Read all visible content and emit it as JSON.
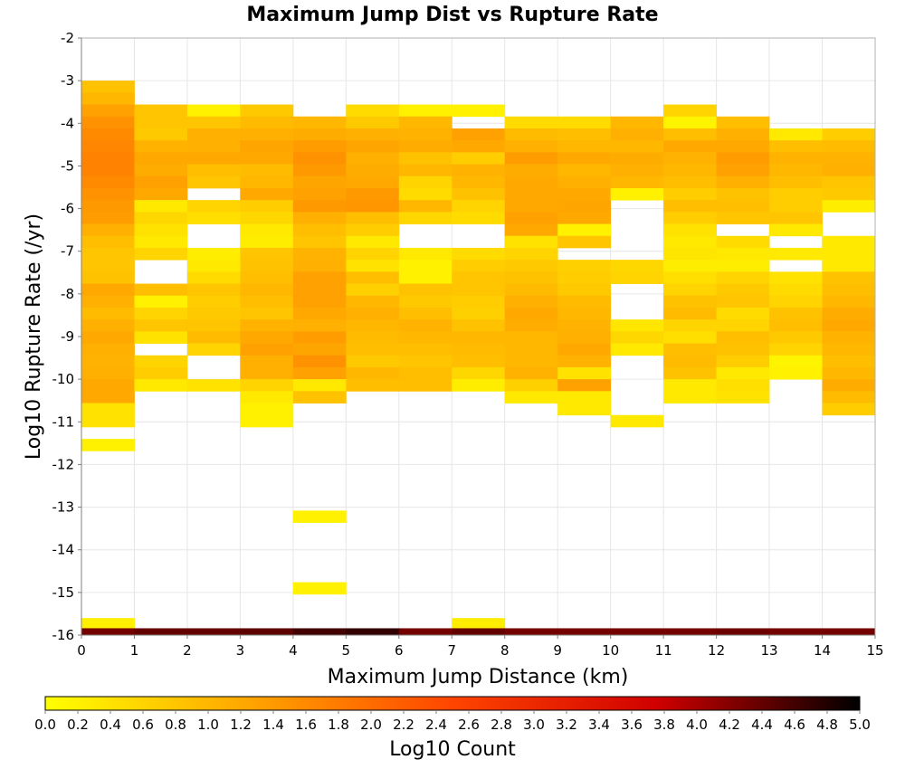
{
  "chart_data": {
    "type": "heatmap",
    "title": "Maximum Jump Dist vs Rupture Rate",
    "xlabel": "Maximum Jump Distance (km)",
    "ylabel": "Log10 Rupture Rate (/yr)",
    "xlim": [
      0,
      15
    ],
    "ylim": [
      -16,
      -2
    ],
    "x_ticks": [
      "0",
      "1",
      "2",
      "3",
      "4",
      "5",
      "6",
      "7",
      "8",
      "9",
      "10",
      "11",
      "12",
      "13",
      "14",
      "15"
    ],
    "y_ticks": [
      "-2",
      "-3",
      "-4",
      "-5",
      "-6",
      "-7",
      "-8",
      "-9",
      "-10",
      "-11",
      "-12",
      "-13",
      "-14",
      "-15",
      "-16"
    ],
    "bin_width_x": 1,
    "bin_height_y": 0.28,
    "colorbar": {
      "label": "Log10 Count",
      "range": [
        0,
        5
      ],
      "ticks": [
        "0.0",
        "0.2",
        "0.4",
        "0.6",
        "0.8",
        "1.0",
        "1.2",
        "1.4",
        "1.6",
        "1.8",
        "2.0",
        "2.2",
        "2.4",
        "2.6",
        "2.8",
        "3.0",
        "3.2",
        "3.4",
        "3.6",
        "3.8",
        "4.0",
        "4.2",
        "4.4",
        "4.6",
        "4.8",
        "5.0"
      ],
      "colors": [
        "#ffff00",
        "#ffa500",
        "#ff4500",
        "#d00000",
        "#000000"
      ]
    },
    "grid": true,
    "columns": [
      {
        "x0": 0,
        "y_top": -3.0,
        "values": [
          0.85,
          1.0,
          1.3,
          1.5,
          1.6,
          1.65,
          1.7,
          1.7,
          1.6,
          1.5,
          1.4,
          1.35,
          1.1,
          0.9,
          0.8,
          0.8,
          0.85,
          1.2,
          1.1,
          0.95,
          1.1,
          1.2,
          1.1,
          1.05,
          1.1,
          1.2,
          1.2,
          0.4,
          0.4,
          null,
          0.2,
          null,
          null,
          null,
          null,
          null,
          null,
          null,
          null,
          null,
          null,
          null,
          null,
          null,
          null,
          0.2
        ]
      },
      {
        "x0": 1,
        "y_top": -3.56,
        "values": [
          0.8,
          0.8,
          0.75,
          1.05,
          1.2,
          1.15,
          1.3,
          1.2,
          0.3,
          0.55,
          0.4,
          0.3,
          0.6,
          null,
          null,
          0.9,
          0.2,
          0.6,
          0.8,
          0.4,
          null,
          0.6,
          0.7,
          0.3
        ]
      },
      {
        "x0": 2,
        "y_top": -3.56,
        "values": [
          0.2,
          0.8,
          1.1,
          1.1,
          1.2,
          0.9,
          0.8,
          null,
          0.6,
          0.45,
          null,
          null,
          0.25,
          0.3,
          0.5,
          0.8,
          0.7,
          0.75,
          0.8,
          0.95,
          0.6,
          null,
          null,
          0.4
        ]
      },
      {
        "x0": 3,
        "y_top": -3.56,
        "values": [
          0.75,
          0.95,
          1.1,
          1.25,
          1.2,
          0.95,
          1.0,
          1.2,
          0.7,
          0.55,
          0.3,
          0.25,
          0.8,
          0.85,
          0.9,
          1.0,
          0.9,
          0.8,
          1.05,
          1.2,
          1.3,
          1.1,
          1.1,
          0.6,
          0.3,
          0.2,
          0.2
        ]
      },
      {
        "x0": 4,
        "y_top": -3.84,
        "values": [
          1.0,
          1.15,
          1.35,
          1.5,
          1.4,
          1.25,
          1.3,
          1.4,
          1.1,
          0.9,
          0.8,
          1.05,
          1.1,
          1.3,
          1.3,
          1.3,
          1.2,
          1.1,
          1.35,
          1.25,
          1.5,
          1.3,
          0.3,
          0.85,
          null,
          null,
          null,
          null,
          null,
          null,
          null,
          null,
          null,
          0.2,
          null,
          null,
          null,
          null,
          null,
          0.2
        ]
      },
      {
        "x0": 5,
        "y_top": -3.56,
        "values": [
          0.5,
          0.75,
          1.1,
          1.25,
          1.1,
          1.15,
          1.2,
          1.4,
          1.45,
          0.9,
          0.7,
          0.3,
          0.6,
          0.4,
          0.9,
          0.65,
          1.0,
          1.1,
          1.0,
          0.95,
          0.9,
          0.75,
          1.0,
          0.9
        ]
      },
      {
        "x0": 6,
        "y_top": -3.56,
        "values": [
          0.2,
          1.0,
          1.05,
          1.15,
          0.85,
          1.0,
          0.6,
          0.5,
          1.0,
          0.55,
          null,
          null,
          0.3,
          0.2,
          0.2,
          0.85,
          0.75,
          0.9,
          1.05,
          1.0,
          0.9,
          0.8,
          0.9,
          0.9
        ]
      },
      {
        "x0": 7,
        "y_top": -3.56,
        "values": [
          0.2,
          null,
          1.3,
          1.2,
          0.7,
          1.05,
          1.0,
          0.85,
          0.6,
          0.5,
          null,
          null,
          0.5,
          0.7,
          0.8,
          0.8,
          0.7,
          0.65,
          0.85,
          1.0,
          0.95,
          0.9,
          0.55,
          0.25,
          null,
          null,
          null,
          null,
          null,
          null,
          null,
          null,
          null,
          null,
          null,
          null,
          null,
          null,
          null,
          null,
          null,
          null,
          null,
          0.25
        ]
      },
      {
        "x0": 8,
        "y_top": -3.84,
        "values": [
          0.5,
          0.95,
          1.1,
          1.35,
          1.15,
          1.2,
          1.2,
          1.2,
          1.3,
          1.2,
          0.4,
          0.6,
          0.75,
          0.85,
          0.95,
          1.1,
          1.2,
          1.15,
          1.0,
          1.0,
          1.0,
          1.05,
          0.65,
          0.3
        ]
      },
      {
        "x0": 9,
        "y_top": -3.84,
        "values": [
          0.5,
          0.9,
          1.0,
          1.2,
          1.0,
          1.1,
          1.2,
          1.25,
          1.2,
          0.2,
          0.8,
          null,
          0.65,
          0.7,
          0.75,
          0.95,
          1.0,
          1.05,
          1.1,
          1.2,
          1.05,
          0.4,
          1.3,
          0.3,
          0.3
        ]
      },
      {
        "x0": 10,
        "y_top": -3.84,
        "values": [
          1.0,
          1.1,
          1.0,
          1.15,
          1.1,
          1.0,
          0.2,
          null,
          null,
          null,
          null,
          null,
          0.55,
          0.6,
          null,
          null,
          null,
          0.35,
          0.55,
          0.3,
          null,
          null,
          null,
          null,
          null,
          0.3
        ]
      },
      {
        "x0": 11,
        "y_top": -3.56,
        "values": [
          0.6,
          0.15,
          0.9,
          1.2,
          1.05,
          1.0,
          0.9,
          0.7,
          0.9,
          0.7,
          0.4,
          0.3,
          0.35,
          0.25,
          0.45,
          0.6,
          0.85,
          0.95,
          0.6,
          0.45,
          0.9,
          0.95,
          0.85,
          0.3,
          0.3
        ]
      },
      {
        "x0": 12,
        "y_top": -3.84,
        "values": [
          0.9,
          1.1,
          1.2,
          1.35,
          1.3,
          1.1,
          0.85,
          0.9,
          0.8,
          null,
          0.5,
          0.3,
          0.25,
          0.6,
          0.75,
          0.8,
          0.5,
          0.6,
          0.9,
          0.85,
          0.7,
          0.3,
          0.45,
          0.4
        ]
      },
      {
        "x0": 13,
        "y_top": -4.12,
        "values": [
          0.3,
          0.9,
          1.05,
          1.0,
          0.9,
          0.7,
          0.7,
          0.8,
          0.3,
          null,
          0.3,
          null,
          0.4,
          0.5,
          0.6,
          0.85,
          0.9,
          0.75,
          0.6,
          0.15,
          0.2
        ]
      },
      {
        "x0": 14,
        "y_top": -4.12,
        "values": [
          0.7,
          0.95,
          1.05,
          1.1,
          0.8,
          0.75,
          0.25,
          null,
          null,
          0.3,
          0.3,
          0.3,
          0.85,
          0.9,
          1.0,
          1.15,
          1.2,
          1.05,
          1.0,
          0.9,
          1.0,
          1.15,
          0.95,
          0.7
        ]
      }
    ],
    "bottom_row": {
      "y0": -16,
      "y1": -15.84,
      "values": [
        4.3,
        4.4,
        4.4,
        4.45,
        4.6,
        4.7,
        4.3,
        4.4,
        4.3,
        4.3,
        4.3,
        4.3,
        4.35,
        4.3,
        4.3
      ]
    }
  }
}
